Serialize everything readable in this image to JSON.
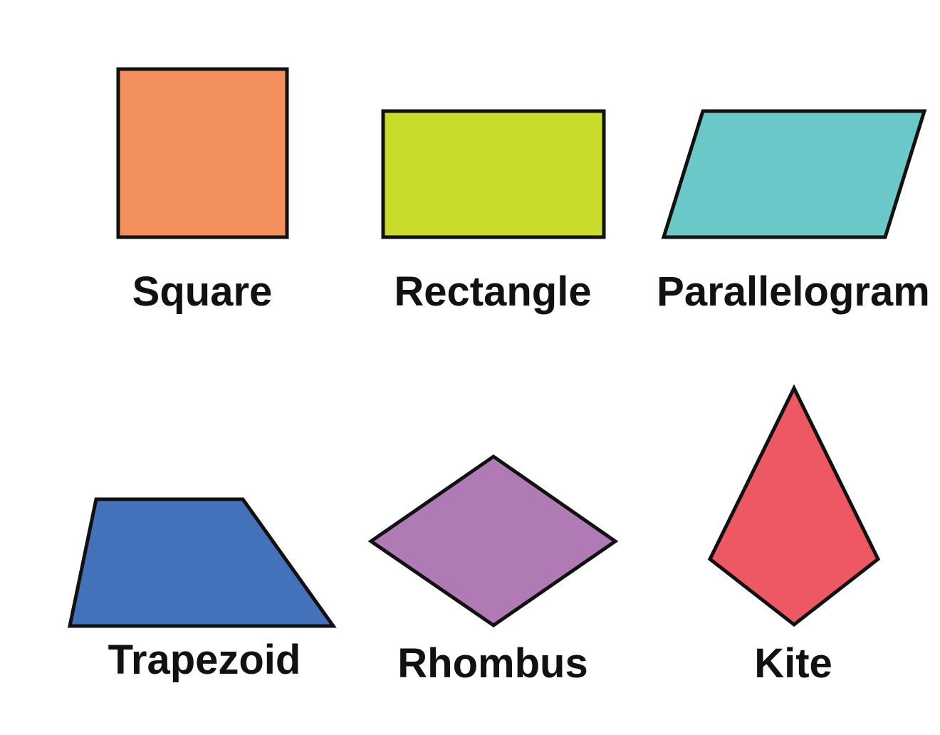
{
  "shapes": [
    {
      "name": "Square",
      "fill": "#F4905C"
    },
    {
      "name": "Rectangle",
      "fill": "#C9DC2B"
    },
    {
      "name": "Parallelogram",
      "fill": "#6BC8C8"
    },
    {
      "name": "Trapezoid",
      "fill": "#4472BA"
    },
    {
      "name": "Rhombus",
      "fill": "#B07AB4"
    },
    {
      "name": "Kite",
      "fill": "#EE5863"
    }
  ],
  "outline_color": "#111111"
}
